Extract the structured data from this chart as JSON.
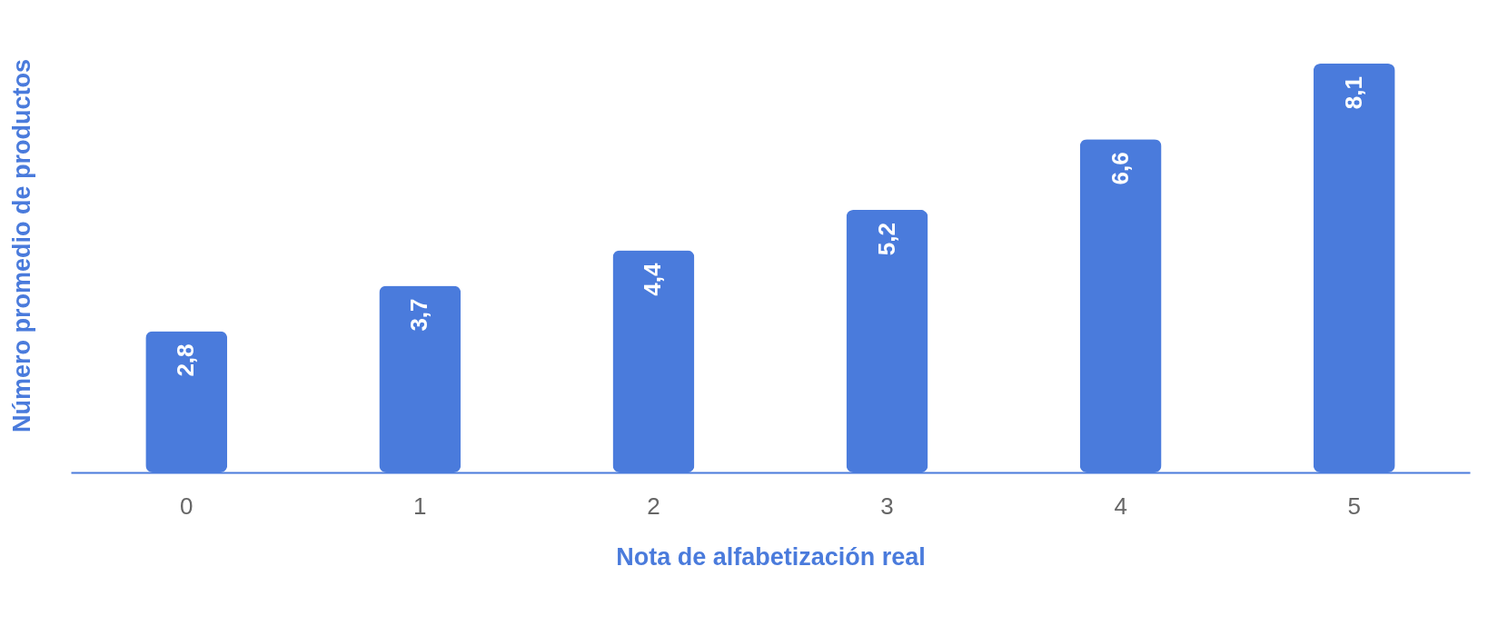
{
  "chart_data": {
    "type": "bar",
    "xlabel": "Nota de alfabetización real",
    "ylabel": "Número promedio de productos",
    "categories": [
      "0",
      "1",
      "2",
      "3",
      "4",
      "5"
    ],
    "values": [
      2.8,
      3.7,
      4.4,
      5.2,
      6.6,
      8.1
    ],
    "value_labels": [
      "2,8",
      "3,7",
      "4,4",
      "5,2",
      "6,6",
      "8,1"
    ],
    "color": "#4a7bdc"
  }
}
